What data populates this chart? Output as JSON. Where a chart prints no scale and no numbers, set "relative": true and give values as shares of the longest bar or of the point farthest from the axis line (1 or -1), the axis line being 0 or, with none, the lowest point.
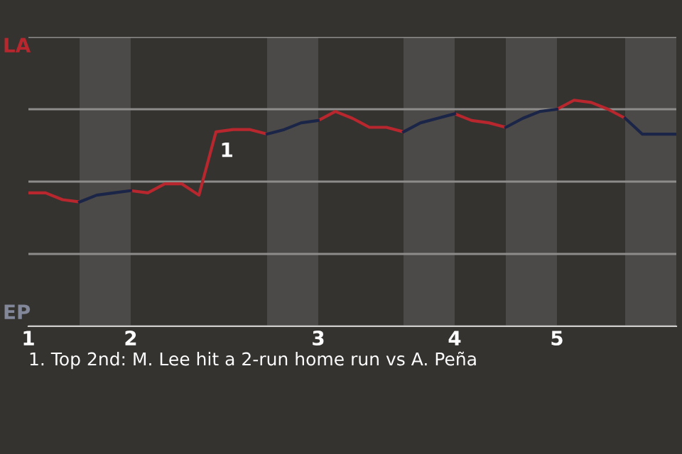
{
  "chart_data": {
    "type": "line",
    "relative": true,
    "categories": [
      "1",
      null,
      null,
      null,
      null,
      null,
      "2",
      null,
      null,
      null,
      null,
      null,
      null,
      null,
      null,
      null,
      null,
      "3",
      null,
      null,
      null,
      null,
      null,
      null,
      null,
      "4",
      null,
      null,
      null,
      null,
      null,
      "5",
      null,
      null,
      null,
      null,
      null,
      null,
      null
    ],
    "grid": "y",
    "series": [
      {
        "color": "#b7272d",
        "values": [
          0.59,
          0.59,
          0.56,
          0.55,
          null,
          null,
          0.6,
          0.59,
          0.63,
          0.63,
          0.58,
          0.86,
          0.87,
          0.87,
          0.85,
          null,
          null,
          0.91,
          0.95,
          0.92,
          0.88,
          0.88,
          0.86,
          null,
          null,
          0.94,
          0.91,
          0.9,
          0.88,
          null,
          null,
          0.96,
          1,
          0.99,
          0.96,
          0.92,
          null,
          null,
          null
        ]
      },
      {
        "color": "#1b2547",
        "values": [
          null,
          null,
          null,
          0.55,
          0.58,
          0.59,
          0.6,
          null,
          null,
          null,
          null,
          null,
          null,
          null,
          0.85,
          0.87,
          0.9,
          0.91,
          null,
          null,
          null,
          null,
          0.86,
          0.9,
          0.92,
          0.94,
          null,
          null,
          0.88,
          0.92,
          0.95,
          0.96,
          null,
          null,
          null,
          0.92,
          0.85,
          0.85,
          0.85
        ]
      }
    ],
    "annotations": [
      "LA",
      "EP",
      {
        "text": "1",
        "y": 0.86
      },
      "1. Top 2nd: M. Lee hit a 2-run home run vs A. Peña"
    ]
  }
}
